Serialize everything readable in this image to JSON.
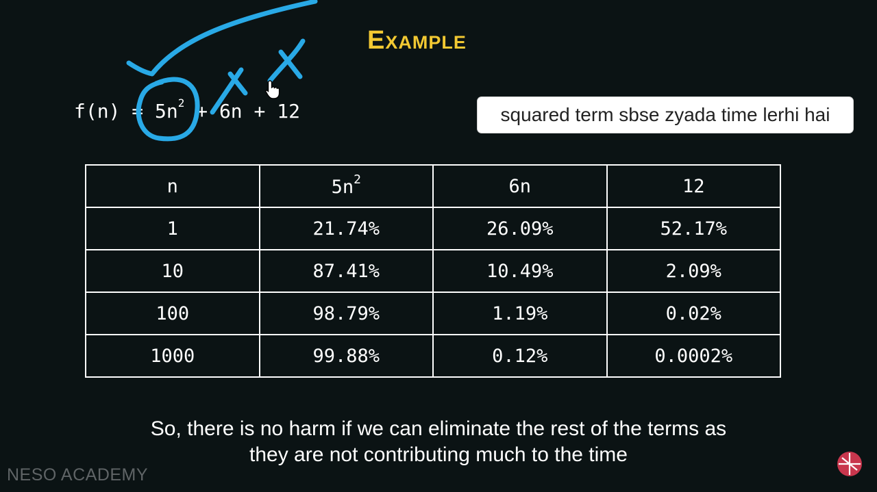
{
  "title": "Example",
  "formula": {
    "lhs": "f(n) = ",
    "term1_base": "5n",
    "term1_exp": "2",
    "rest": " + 6n + 12"
  },
  "caption": "squared term sbse zyada time lerhi hai",
  "table": {
    "headers": [
      "n",
      "5n",
      "6n",
      "12"
    ],
    "header_exp": "2",
    "rows": [
      [
        "1",
        "21.74%",
        "26.09%",
        "52.17%"
      ],
      [
        "10",
        "87.41%",
        "10.49%",
        "2.09%"
      ],
      [
        "100",
        "98.79%",
        "1.19%",
        "0.02%"
      ],
      [
        "1000",
        "99.88%",
        "0.12%",
        "0.0002%"
      ]
    ]
  },
  "subtitle": {
    "line1": "So, there is no harm if we can eliminate the rest of the terms as",
    "line2": "they are not contributing much to the time"
  },
  "brand": "NESO ACADEMY",
  "colors": {
    "background": "#0b1314",
    "title": "#f2c832",
    "annotation": "#29a9e6",
    "logo": "#c8364d"
  },
  "icons": [
    "hand-cursor-icon",
    "neso-logo-icon"
  ]
}
